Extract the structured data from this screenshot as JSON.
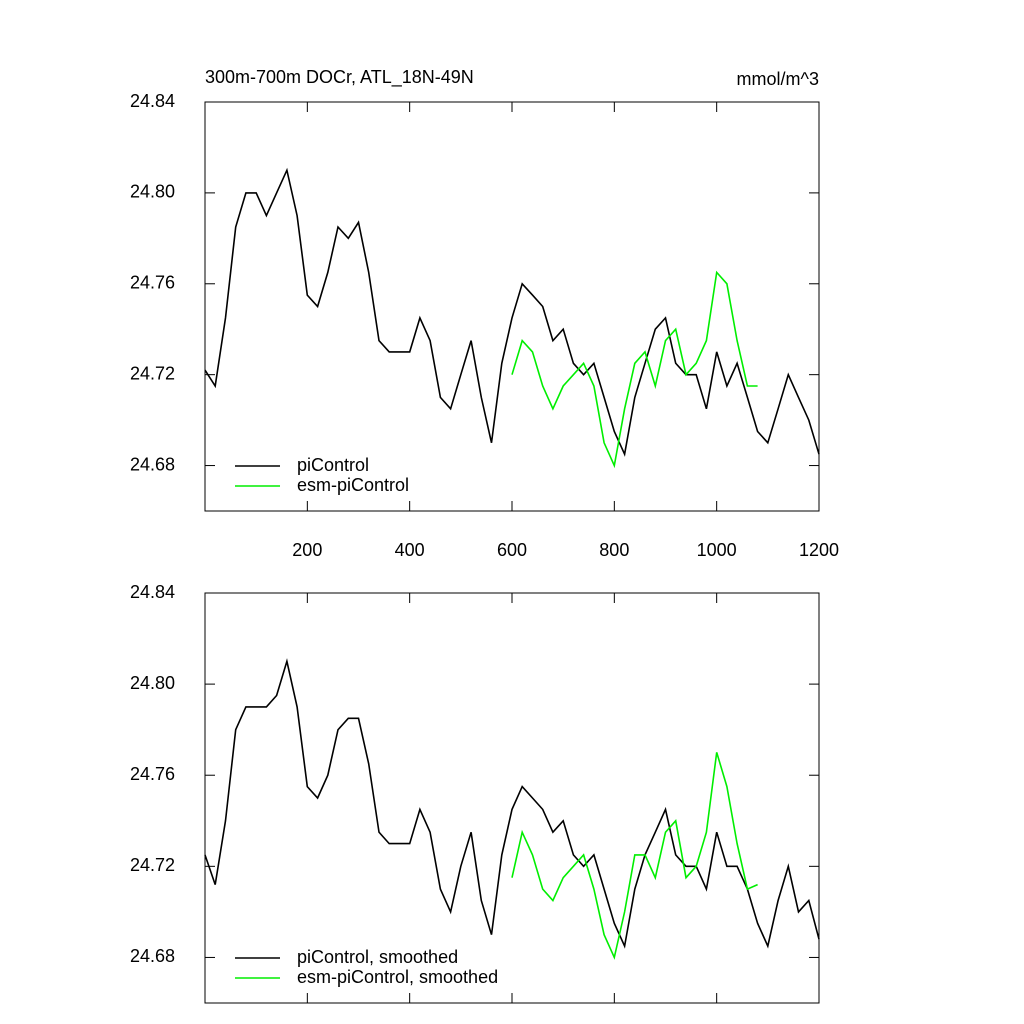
{
  "chart_data": [
    {
      "type": "line",
      "title": "300m-700m DOCr, ATL_18N-49N",
      "units": "mmol/m^3",
      "x": [
        0,
        20,
        40,
        60,
        80,
        100,
        120,
        140,
        160,
        180,
        200,
        220,
        240,
        260,
        280,
        300,
        320,
        340,
        360,
        380,
        400,
        420,
        440,
        460,
        480,
        500,
        520,
        540,
        560,
        580,
        600,
        620,
        640,
        660,
        680,
        700,
        720,
        740,
        760,
        780,
        800,
        820,
        840,
        860,
        880,
        900,
        920,
        940,
        960,
        980,
        1000,
        1020,
        1040,
        1060,
        1080,
        1100,
        1120,
        1140,
        1160,
        1180,
        1200
      ],
      "series": [
        {
          "name": "piControl",
          "color": "#000000",
          "values": [
            24.722,
            24.715,
            24.745,
            24.785,
            24.8,
            24.8,
            24.79,
            24.8,
            24.81,
            24.79,
            24.755,
            24.75,
            24.765,
            24.785,
            24.78,
            24.787,
            24.765,
            24.735,
            24.73,
            24.73,
            24.73,
            24.745,
            24.735,
            24.71,
            24.705,
            24.72,
            24.735,
            24.71,
            24.69,
            24.725,
            24.745,
            24.76,
            24.755,
            24.75,
            24.735,
            24.74,
            24.725,
            24.72,
            24.725,
            24.71,
            24.695,
            24.685,
            24.71,
            24.725,
            24.74,
            24.745,
            24.725,
            24.72,
            24.72,
            24.705,
            24.73,
            24.715,
            24.725,
            24.71,
            24.695,
            24.69,
            24.705,
            24.72,
            24.71,
            24.7,
            24.685
          ]
        },
        {
          "name": "esm-piControl",
          "color": "#00ee00",
          "values": [
            null,
            null,
            null,
            null,
            null,
            null,
            null,
            null,
            null,
            null,
            null,
            null,
            null,
            null,
            null,
            null,
            null,
            null,
            null,
            null,
            null,
            null,
            null,
            null,
            null,
            null,
            null,
            null,
            null,
            null,
            24.72,
            24.735,
            24.73,
            24.715,
            24.705,
            24.715,
            24.72,
            24.725,
            24.715,
            24.69,
            24.68,
            24.705,
            24.725,
            24.73,
            24.715,
            24.735,
            24.74,
            24.72,
            24.725,
            24.735,
            24.765,
            24.76,
            24.735,
            24.715,
            24.715,
            null,
            null,
            null,
            null,
            null,
            null
          ]
        }
      ],
      "xlim": [
        0,
        1200
      ],
      "xticks": [
        200,
        400,
        600,
        800,
        1000,
        1200
      ],
      "x_tick_labels": true,
      "ylim": [
        24.66,
        24.84
      ],
      "yticks": [
        24.68,
        24.72,
        24.76,
        {
          "value": 24.8,
          "label": "24.80"
        },
        24.84
      ],
      "legend": "lower left"
    },
    {
      "type": "line",
      "x": [
        0,
        20,
        40,
        60,
        80,
        100,
        120,
        140,
        160,
        180,
        200,
        220,
        240,
        260,
        280,
        300,
        320,
        340,
        360,
        380,
        400,
        420,
        440,
        460,
        480,
        500,
        520,
        540,
        560,
        580,
        600,
        620,
        640,
        660,
        680,
        700,
        720,
        740,
        760,
        780,
        800,
        820,
        840,
        860,
        880,
        900,
        920,
        940,
        960,
        980,
        1000,
        1020,
        1040,
        1060,
        1080,
        1100,
        1120,
        1140,
        1160,
        1180,
        1200
      ],
      "series": [
        {
          "name": "piControl, smoothed",
          "color": "#000000",
          "values": [
            24.725,
            24.712,
            24.74,
            24.78,
            24.79,
            24.79,
            24.79,
            24.795,
            24.81,
            24.79,
            24.755,
            24.75,
            24.76,
            24.78,
            24.785,
            24.785,
            24.765,
            24.735,
            24.73,
            24.73,
            24.73,
            24.745,
            24.735,
            24.71,
            24.7,
            24.72,
            24.735,
            24.705,
            24.69,
            24.725,
            24.745,
            24.755,
            24.75,
            24.745,
            24.735,
            24.74,
            24.725,
            24.72,
            24.725,
            24.71,
            24.695,
            24.685,
            24.71,
            24.725,
            24.735,
            24.745,
            24.725,
            24.72,
            24.72,
            24.71,
            24.735,
            24.72,
            24.72,
            24.71,
            24.695,
            24.685,
            24.705,
            24.72,
            24.7,
            24.705,
            24.688
          ]
        },
        {
          "name": "esm-piControl, smoothed",
          "color": "#00ee00",
          "values": [
            null,
            null,
            null,
            null,
            null,
            null,
            null,
            null,
            null,
            null,
            null,
            null,
            null,
            null,
            null,
            null,
            null,
            null,
            null,
            null,
            null,
            null,
            null,
            null,
            null,
            null,
            null,
            null,
            null,
            null,
            24.715,
            24.735,
            24.725,
            24.71,
            24.705,
            24.715,
            24.72,
            24.725,
            24.71,
            24.69,
            24.68,
            24.7,
            24.725,
            24.725,
            24.715,
            24.735,
            24.74,
            24.715,
            24.72,
            24.735,
            24.77,
            24.755,
            24.73,
            24.71,
            24.712,
            null,
            null,
            null,
            null,
            null,
            null
          ]
        }
      ],
      "xlim": [
        0,
        1200
      ],
      "xticks": [
        200,
        400,
        600,
        800,
        1000,
        1200
      ],
      "x_tick_labels": false,
      "ylim": [
        24.66,
        24.84
      ],
      "yticks": [
        24.68,
        24.72,
        24.76,
        {
          "value": 24.8,
          "label": "24.80"
        },
        24.84
      ],
      "legend": "lower left"
    }
  ]
}
